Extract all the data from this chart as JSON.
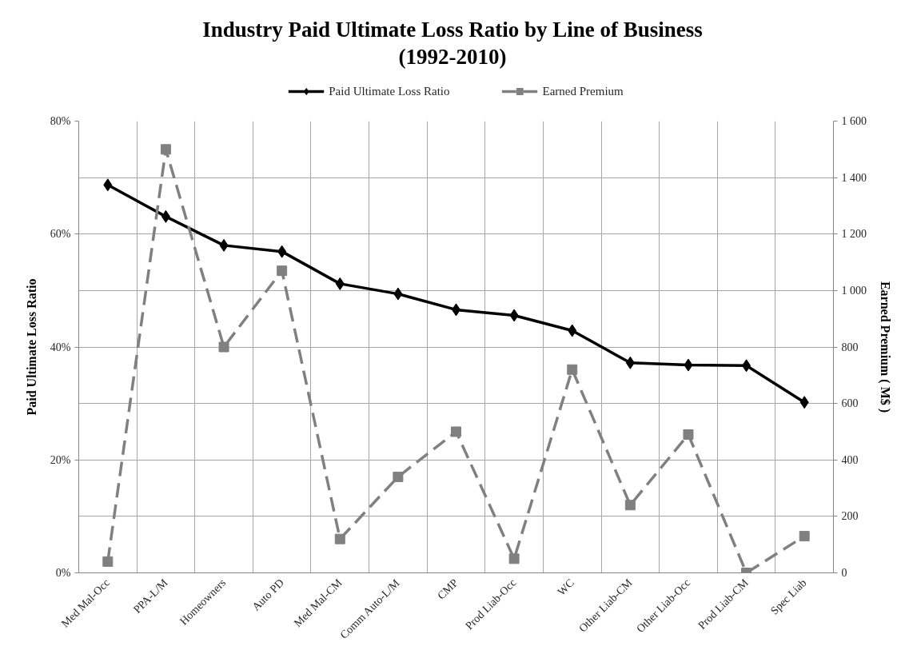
{
  "chart_data": {
    "type": "line",
    "title": "Industry Paid Ultimate Loss Ratio by Line of Business\n(1992-2010)",
    "ylabel": "Paid Ultimate Loss Ratio",
    "y2label": "Earned Premium ( M$ )",
    "categories": [
      "Med Mal-Occ",
      "PPA-L/M",
      "Homeowners",
      "Auto PD",
      "Med Mal-CM",
      "Comm Auto-L/M",
      "CMP",
      "Prod Liab-Occ",
      "WC",
      "Other Liab-CM",
      "Other Liab-Occ",
      "Prod Liab-CM",
      "Spec Liab"
    ],
    "series": [
      {
        "name": "Paid Ultimate Loss Ratio",
        "color": "#000000",
        "marker": "diamond",
        "line_style": "solid",
        "values": [
          68.7,
          63.1,
          58.0,
          56.9,
          51.2,
          49.4,
          46.6,
          45.6,
          42.9,
          37.2,
          36.8,
          36.7,
          30.2
        ]
      },
      {
        "name": "Earned Premium",
        "color": "#808080",
        "marker": "square",
        "line_style": "dashed",
        "axis": "y2",
        "values": [
          40,
          1500,
          800,
          1070,
          120,
          340,
          500,
          50,
          720,
          240,
          490,
          0,
          130
        ]
      }
    ],
    "ylim": [
      0,
      80
    ],
    "yticks": [
      {
        "value": 0,
        "label": "0%"
      },
      {
        "value": 20,
        "label": "20%"
      },
      {
        "value": 40,
        "label": "40%"
      },
      {
        "value": 60,
        "label": "60%"
      },
      {
        "value": 80,
        "label": "80%"
      }
    ],
    "y2lim": [
      0,
      1600
    ],
    "y2ticks": [
      0,
      200,
      400,
      600,
      800,
      {
        "value": 1000,
        "label": "1 000"
      },
      {
        "value": 1200,
        "label": "1 200"
      },
      {
        "value": 1400,
        "label": "1 400"
      },
      {
        "value": 1600,
        "label": "1 600"
      }
    ],
    "grid": true,
    "legend": "top"
  }
}
